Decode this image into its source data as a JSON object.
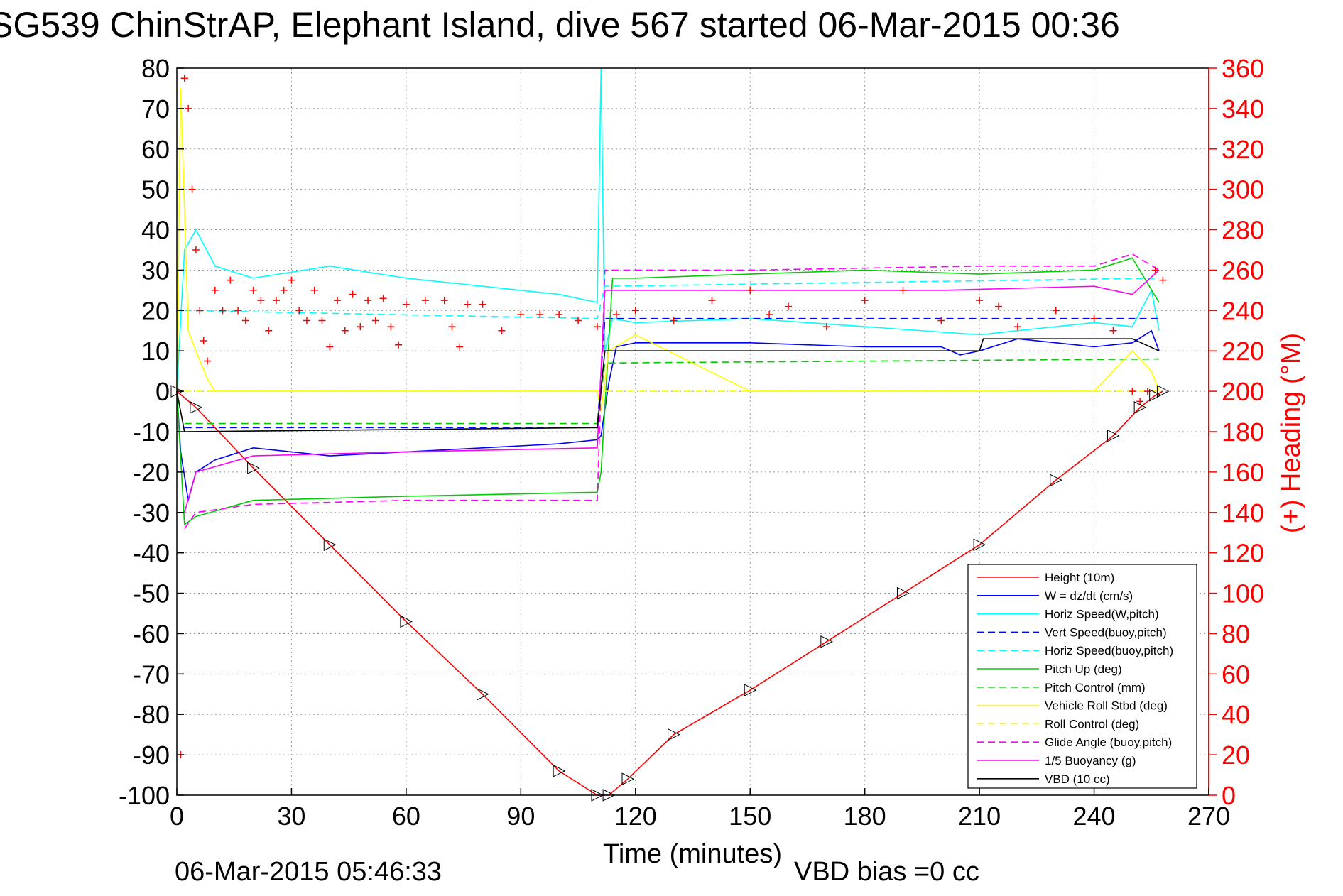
{
  "chart_data": {
    "type": "line",
    "title": "SG539 ChinStrAP, Elephant Island, dive 567 started 06-Mar-2015 00:36",
    "xlabel": "Time (minutes)",
    "ylabel_right": "(+) Heading (°M)",
    "footer_left": "06-Mar-2015 05:46:33",
    "footer_right": "VBD bias =0 cc",
    "xlim": [
      0,
      270
    ],
    "ylim_left": [
      -100,
      80
    ],
    "ylim_right": [
      0,
      360
    ],
    "x_ticks": [
      "0",
      "30",
      "60",
      "90",
      "120",
      "150",
      "180",
      "210",
      "240",
      "270"
    ],
    "y_ticks_left": [
      "80",
      "70",
      "60",
      "50",
      "40",
      "30",
      "20",
      "10",
      "0",
      "-10",
      "-20",
      "-30",
      "-40",
      "-50",
      "-60",
      "-70",
      "-80",
      "-90",
      "-100"
    ],
    "y_ticks_right": [
      "360",
      "340",
      "320",
      "300",
      "280",
      "260",
      "240",
      "220",
      "200",
      "180",
      "160",
      "140",
      "120",
      "100",
      "80",
      "60",
      "40",
      "20",
      "0"
    ],
    "grid": true,
    "legend_position": "bottom-right",
    "series": [
      {
        "name": "Height (10m)",
        "color": "#ff0000",
        "dash": "solid",
        "x": [
          0,
          5,
          20,
          40,
          60,
          80,
          100,
          110,
          113,
          118,
          130,
          150,
          170,
          190,
          210,
          230,
          245,
          252,
          256,
          258
        ],
        "y": [
          0,
          -4,
          -19,
          -38,
          -57,
          -75,
          -94,
          -100,
          -100,
          -96,
          -85,
          -74,
          -62,
          -50,
          -38,
          -22,
          -11,
          -4,
          -1,
          0
        ]
      },
      {
        "name": "W = dz/dt (cm/s)",
        "color": "#0000ff",
        "dash": "solid",
        "x": [
          0,
          1,
          3,
          5,
          10,
          20,
          40,
          60,
          80,
          100,
          110,
          111,
          113,
          115,
          120,
          150,
          180,
          200,
          205,
          210,
          220,
          240,
          250,
          255,
          257
        ],
        "y": [
          0,
          -15,
          -27,
          -20,
          -17,
          -14,
          -16,
          -15,
          -14,
          -13,
          -12,
          -11,
          2,
          11,
          12,
          12,
          11,
          11,
          9,
          10,
          13,
          11,
          12,
          15,
          10
        ]
      },
      {
        "name": "Horiz Speed(W,pitch)",
        "color": "#00ffff",
        "dash": "solid",
        "x": [
          0,
          2,
          5,
          10,
          20,
          40,
          60,
          80,
          100,
          110,
          111,
          112,
          114,
          120,
          150,
          180,
          210,
          240,
          250,
          255,
          257
        ],
        "y": [
          0,
          35,
          40,
          31,
          28,
          31,
          28,
          26,
          24,
          22,
          80,
          10,
          18,
          17,
          18,
          16,
          14,
          17,
          16,
          25,
          15
        ]
      },
      {
        "name": "Vert Speed(buoy,pitch)",
        "color": "#0000ff",
        "dash": "dashed",
        "x": [
          2,
          110,
          112,
          257
        ],
        "y": [
          -9,
          -9,
          18,
          18
        ]
      },
      {
        "name": "Horiz Speed(buoy,pitch)",
        "color": "#00ffff",
        "dash": "dashed",
        "x": [
          2,
          110,
          112,
          257
        ],
        "y": [
          20,
          18,
          26,
          28
        ]
      },
      {
        "name": "Pitch Up (deg)",
        "color": "#00cc00",
        "dash": "solid",
        "x": [
          0,
          2,
          5,
          20,
          60,
          110,
          111,
          114,
          120,
          150,
          180,
          210,
          240,
          250,
          257
        ],
        "y": [
          0,
          -33,
          -31,
          -27,
          -26,
          -25,
          -20,
          28,
          28,
          29,
          30,
          29,
          30,
          33,
          22
        ]
      },
      {
        "name": "Pitch Control (mm)",
        "color": "#00cc00",
        "dash": "dashed",
        "x": [
          2,
          110,
          112,
          257
        ],
        "y": [
          -8,
          -8,
          7,
          8
        ]
      },
      {
        "name": "Vehicle Roll Stbd (deg)",
        "color": "#ffff00",
        "dash": "solid",
        "x": [
          0,
          1,
          3,
          5,
          8,
          10,
          20,
          50,
          110,
          111,
          113,
          120,
          150,
          180,
          210,
          240,
          250,
          255,
          257
        ],
        "y": [
          0,
          75,
          15,
          10,
          3,
          0,
          0,
          0,
          0,
          -5,
          10,
          14,
          0,
          0,
          0,
          0,
          10,
          5,
          0
        ]
      },
      {
        "name": "Roll Control (deg)",
        "color": "#ffff00",
        "dash": "dashed",
        "x": [
          2,
          257
        ],
        "y": [
          0,
          0
        ]
      },
      {
        "name": "Glide Angle (buoy,pitch)",
        "color": "#ff00ff",
        "dash": "dashed",
        "x": [
          2,
          5,
          20,
          60,
          110,
          112,
          150,
          210,
          240,
          250,
          257
        ],
        "y": [
          -34,
          -30,
          -28,
          -27,
          -27,
          30,
          30,
          31,
          31,
          34,
          30
        ]
      },
      {
        "name": "1/5 Buoyancy (g)",
        "color": "#ff00ff",
        "dash": "solid",
        "x": [
          2,
          5,
          20,
          60,
          110,
          112,
          150,
          200,
          240,
          250,
          257
        ],
        "y": [
          -30,
          -20,
          -16,
          -15,
          -14,
          25,
          25,
          25,
          26,
          24,
          30
        ]
      },
      {
        "name": "VBD (10 cc)",
        "color": "#000000",
        "dash": "solid",
        "x": [
          0,
          2,
          110,
          112,
          210,
          211,
          250,
          257
        ],
        "y": [
          0,
          -10,
          -9,
          10,
          10,
          13,
          13,
          10
        ]
      }
    ],
    "heading_series": {
      "name": "Heading",
      "marker": "+",
      "color": "#ff0000",
      "x": [
        1,
        2,
        3,
        4,
        5,
        6,
        7,
        8,
        10,
        12,
        14,
        16,
        18,
        20,
        22,
        24,
        26,
        28,
        30,
        32,
        34,
        36,
        38,
        40,
        42,
        44,
        46,
        48,
        50,
        52,
        54,
        56,
        58,
        60,
        65,
        70,
        72,
        74,
        76,
        80,
        85,
        90,
        95,
        100,
        105,
        110,
        115,
        120,
        130,
        140,
        150,
        155,
        160,
        170,
        180,
        190,
        200,
        210,
        215,
        220,
        230,
        240,
        245,
        250,
        252,
        254,
        256,
        258
      ],
      "y": [
        20,
        355,
        340,
        300,
        270,
        240,
        225,
        215,
        250,
        240,
        255,
        240,
        235,
        250,
        245,
        230,
        245,
        250,
        255,
        240,
        235,
        250,
        235,
        222,
        245,
        230,
        248,
        232,
        245,
        235,
        246,
        232,
        223,
        243,
        245,
        245,
        232,
        222,
        243,
        243,
        230,
        238,
        238,
        238,
        235,
        232,
        238,
        240,
        235,
        245,
        250,
        238,
        242,
        232,
        245,
        250,
        235,
        245,
        242,
        232,
        240,
        236,
        230,
        200,
        195,
        200,
        260,
        255
      ]
    }
  }
}
